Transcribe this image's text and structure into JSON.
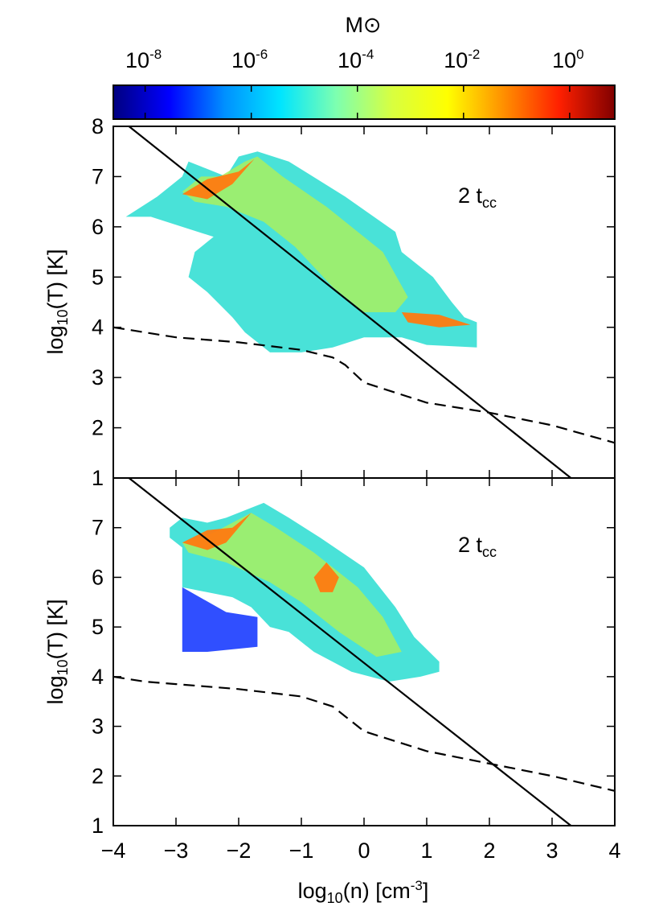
{
  "chart_data": {
    "type": "heatmap",
    "colorbar": {
      "label": "M⊙",
      "scale": "log",
      "colors": [
        "#000080",
        "#0000ff",
        "#0090ff",
        "#00e5ff",
        "#7dffb0",
        "#d8ff40",
        "#ffff00",
        "#ff9000",
        "#ff2000",
        "#800000"
      ],
      "tick_labels": [
        {
          "base": "10",
          "exp": "-8",
          "value": 1e-08
        },
        {
          "base": "10",
          "exp": "-6",
          "value": 1e-06
        },
        {
          "base": "10",
          "exp": "-4",
          "value": 0.0001
        },
        {
          "base": "10",
          "exp": "-2",
          "value": 0.01
        },
        {
          "base": "10",
          "exp": "0",
          "value": 1
        }
      ]
    },
    "xaxis": {
      "label_parts": [
        "log",
        "10",
        "(n) [cm",
        "-3",
        "]"
      ],
      "range": [
        -4,
        4
      ],
      "ticks": [
        -4,
        -3,
        -2,
        -1,
        0,
        1,
        2,
        3,
        4
      ],
      "tick_labels": [
        "−4",
        "−3",
        "−2",
        "−1",
        "0",
        "1",
        "2",
        "3",
        "4"
      ]
    },
    "panels": [
      {
        "annotation": {
          "main": "2 t",
          "sub": "cc"
        },
        "yaxis": {
          "label_parts": [
            "log",
            "10",
            "(T) [K]"
          ],
          "range": [
            1,
            8
          ],
          "ticks": [
            1,
            2,
            3,
            4,
            5,
            6,
            7,
            8
          ],
          "tick_labels": [
            "1",
            "2",
            "3",
            "4",
            "5",
            "6",
            "7",
            "8"
          ]
        },
        "series": [
          {
            "type": "line",
            "style": "solid",
            "points": [
              [
                -3.75,
                8.0
              ],
              [
                3.3,
                1.0
              ]
            ]
          },
          {
            "type": "line",
            "style": "dashed",
            "points": [
              [
                -4,
                4.0
              ],
              [
                -3.5,
                3.9
              ],
              [
                -3,
                3.8
              ],
              [
                -2,
                3.7
              ],
              [
                -1,
                3.55
              ],
              [
                -0.5,
                3.4
              ],
              [
                -0.3,
                3.25
              ],
              [
                0,
                2.9
              ],
              [
                0.5,
                2.7
              ],
              [
                1,
                2.5
              ],
              [
                2,
                2.3
              ],
              [
                3,
                2.05
              ],
              [
                4,
                1.7
              ]
            ]
          },
          {
            "type": "region",
            "intensity": "low",
            "polygon": [
              [
                -3.8,
                6.2
              ],
              [
                -3.3,
                6.6
              ],
              [
                -2.9,
                7.0
              ],
              [
                -2.8,
                7.3
              ],
              [
                -2.6,
                7.2
              ],
              [
                -2.2,
                7.0
              ],
              [
                -2.0,
                7.4
              ],
              [
                -1.7,
                7.5
              ],
              [
                -1.2,
                7.3
              ],
              [
                -0.3,
                6.6
              ],
              [
                0.5,
                5.9
              ],
              [
                0.6,
                5.5
              ],
              [
                1.1,
                5.0
              ],
              [
                1.4,
                4.5
              ],
              [
                1.6,
                4.2
              ],
              [
                1.8,
                4.1
              ],
              [
                1.8,
                3.6
              ],
              [
                1.0,
                3.65
              ],
              [
                0.6,
                3.8
              ],
              [
                0.0,
                3.8
              ],
              [
                -0.5,
                3.6
              ],
              [
                -1.0,
                3.5
              ],
              [
                -1.5,
                3.5
              ],
              [
                -1.9,
                3.9
              ],
              [
                -2.1,
                4.2
              ],
              [
                -2.5,
                4.7
              ],
              [
                -2.8,
                5.0
              ],
              [
                -2.7,
                5.5
              ],
              [
                -2.4,
                5.8
              ],
              [
                -2.9,
                6.0
              ],
              [
                -3.4,
                6.2
              ]
            ]
          },
          {
            "type": "region",
            "intensity": "mid",
            "polygon": [
              [
                -2.9,
                6.7
              ],
              [
                -2.6,
                7.0
              ],
              [
                -2.3,
                7.0
              ],
              [
                -1.9,
                7.3
              ],
              [
                -1.7,
                7.4
              ],
              [
                -1.3,
                7.0
              ],
              [
                -0.6,
                6.4
              ],
              [
                0.3,
                5.5
              ],
              [
                0.7,
                4.6
              ],
              [
                0.5,
                4.3
              ],
              [
                0.0,
                4.3
              ],
              [
                -0.5,
                4.8
              ],
              [
                -1.1,
                5.6
              ],
              [
                -1.6,
                6.1
              ],
              [
                -2.2,
                6.4
              ],
              [
                -2.7,
                6.5
              ]
            ]
          },
          {
            "type": "region",
            "intensity": "high",
            "polygon": [
              [
                -2.9,
                6.65
              ],
              [
                -2.5,
                6.95
              ],
              [
                -2.0,
                7.1
              ],
              [
                -1.75,
                7.35
              ],
              [
                -2.1,
                6.85
              ],
              [
                -2.5,
                6.55
              ]
            ]
          },
          {
            "type": "region",
            "intensity": "high",
            "polygon": [
              [
                0.6,
                4.3
              ],
              [
                1.2,
                4.25
              ],
              [
                1.7,
                4.05
              ],
              [
                1.2,
                4.0
              ],
              [
                0.7,
                4.1
              ]
            ]
          }
        ]
      },
      {
        "annotation": {
          "main": "2 t",
          "sub": "cc"
        },
        "yaxis": {
          "label_parts": [
            "log",
            "10",
            "(T) [K]"
          ],
          "range": [
            1,
            8
          ],
          "ticks": [
            1,
            2,
            3,
            4,
            5,
            6,
            7
          ],
          "tick_labels": [
            "1",
            "2",
            "3",
            "4",
            "5",
            "6",
            "7"
          ]
        },
        "series": [
          {
            "type": "line",
            "style": "solid",
            "points": [
              [
                -3.75,
                8.0
              ],
              [
                3.3,
                1.0
              ]
            ]
          },
          {
            "type": "line",
            "style": "dashed",
            "points": [
              [
                -4,
                4.0
              ],
              [
                -3.5,
                3.9
              ],
              [
                -3,
                3.85
              ],
              [
                -2,
                3.75
              ],
              [
                -1,
                3.6
              ],
              [
                -0.5,
                3.4
              ],
              [
                -0.3,
                3.2
              ],
              [
                0,
                2.9
              ],
              [
                0.5,
                2.7
              ],
              [
                1,
                2.5
              ],
              [
                2,
                2.25
              ],
              [
                3,
                2.0
              ],
              [
                4,
                1.7
              ]
            ]
          },
          {
            "type": "region",
            "intensity": "cold",
            "polygon": [
              [
                -2.9,
                5.8
              ],
              [
                -2.2,
                5.3
              ],
              [
                -1.7,
                5.2
              ],
              [
                -1.7,
                4.6
              ],
              [
                -2.5,
                4.5
              ],
              [
                -2.9,
                4.5
              ]
            ]
          },
          {
            "type": "region",
            "intensity": "low",
            "polygon": [
              [
                -3.1,
                7.0
              ],
              [
                -2.9,
                7.2
              ],
              [
                -2.5,
                7.1
              ],
              [
                -2.2,
                7.2
              ],
              [
                -1.8,
                7.4
              ],
              [
                -1.6,
                7.5
              ],
              [
                -1.2,
                7.2
              ],
              [
                -0.7,
                6.8
              ],
              [
                0.0,
                6.2
              ],
              [
                0.5,
                5.4
              ],
              [
                0.8,
                4.8
              ],
              [
                1.2,
                4.3
              ],
              [
                1.2,
                4.1
              ],
              [
                0.9,
                4.0
              ],
              [
                0.4,
                3.9
              ],
              [
                -0.2,
                4.1
              ],
              [
                -0.8,
                4.5
              ],
              [
                -1.2,
                4.9
              ],
              [
                -1.5,
                5.0
              ],
              [
                -1.8,
                5.4
              ],
              [
                -2.1,
                5.6
              ],
              [
                -2.9,
                5.8
              ],
              [
                -2.9,
                6.6
              ],
              [
                -3.1,
                6.8
              ]
            ]
          },
          {
            "type": "region",
            "intensity": "mid",
            "polygon": [
              [
                -2.9,
                6.7
              ],
              [
                -2.4,
                6.9
              ],
              [
                -1.8,
                7.3
              ],
              [
                -1.4,
                7.0
              ],
              [
                -0.8,
                6.5
              ],
              [
                -0.1,
                5.8
              ],
              [
                0.3,
                5.2
              ],
              [
                0.6,
                4.5
              ],
              [
                0.2,
                4.4
              ],
              [
                -0.4,
                4.9
              ],
              [
                -1.0,
                5.5
              ],
              [
                -1.5,
                5.9
              ],
              [
                -2.2,
                6.3
              ],
              [
                -2.8,
                6.5
              ]
            ]
          },
          {
            "type": "region",
            "intensity": "high",
            "polygon": [
              [
                -2.9,
                6.7
              ],
              [
                -2.5,
                6.95
              ],
              [
                -2.1,
                7.0
              ],
              [
                -1.8,
                7.3
              ],
              [
                -2.2,
                6.7
              ],
              [
                -2.5,
                6.55
              ]
            ]
          },
          {
            "type": "region",
            "intensity": "high",
            "polygon": [
              [
                -0.8,
                6.0
              ],
              [
                -0.6,
                6.3
              ],
              [
                -0.4,
                6.0
              ],
              [
                -0.5,
                5.7
              ],
              [
                -0.7,
                5.7
              ]
            ]
          }
        ]
      }
    ]
  }
}
